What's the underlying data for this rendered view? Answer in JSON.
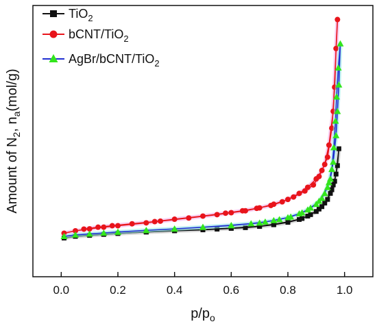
{
  "chart_data": {
    "type": "line",
    "xlabel": "p/p",
    "xlabel_sub": "o",
    "ylabel": "Amount of N",
    "ylabel_sub": "2",
    "ylabel_mid": ", n",
    "ylabel_sub2": "a",
    "ylabel_end": "(mol/g)",
    "xlim": [
      -0.1,
      1.1
    ],
    "ylim": [
      0,
      100
    ],
    "xticks": [
      "0.0",
      "0.2",
      "0.4",
      "0.6",
      "0.8",
      "1.0"
    ],
    "y_tick_labels_shown": false,
    "grid": false,
    "legend_position": "top-left",
    "series": [
      {
        "name": "TiO",
        "name_sub": "2",
        "color": "#111111",
        "marker": "square",
        "points": [
          [
            0.01,
            9.5
          ],
          [
            0.05,
            10.2
          ],
          [
            0.1,
            10.6
          ],
          [
            0.15,
            11.0
          ],
          [
            0.2,
            11.4
          ],
          [
            0.3,
            12.0
          ],
          [
            0.4,
            12.6
          ],
          [
            0.5,
            13.0
          ],
          [
            0.6,
            13.6
          ],
          [
            0.7,
            14.4
          ],
          [
            0.75,
            15.2
          ],
          [
            0.8,
            16.2
          ],
          [
            0.85,
            17.6
          ],
          [
            0.88,
            19.2
          ],
          [
            0.91,
            21.5
          ],
          [
            0.93,
            24.0
          ],
          [
            0.95,
            28.0
          ],
          [
            0.96,
            31.5
          ],
          [
            0.97,
            36.0
          ],
          [
            0.98,
            46.5
          ],
          [
            0.975,
            39.5
          ],
          [
            0.965,
            33.0
          ],
          [
            0.955,
            29.5
          ],
          [
            0.94,
            25.5
          ],
          [
            0.92,
            22.5
          ],
          [
            0.9,
            20.5
          ],
          [
            0.87,
            18.6
          ],
          [
            0.84,
            17.2
          ],
          [
            0.8,
            16.0
          ],
          [
            0.75,
            15.0
          ],
          [
            0.7,
            14.3
          ],
          [
            0.65,
            13.8
          ],
          [
            0.6,
            13.5
          ],
          [
            0.55,
            13.2
          ],
          [
            0.5,
            12.9
          ],
          [
            0.4,
            12.5
          ],
          [
            0.3,
            12.0
          ],
          [
            0.2,
            11.4
          ]
        ]
      },
      {
        "name": "bCNT/TiO",
        "name_sub": "2",
        "color": "#e8141b",
        "marker": "circle",
        "points": [
          [
            0.01,
            11.5
          ],
          [
            0.05,
            12.5
          ],
          [
            0.1,
            13.3
          ],
          [
            0.15,
            14.0
          ],
          [
            0.2,
            14.6
          ],
          [
            0.3,
            15.8
          ],
          [
            0.35,
            16.5
          ],
          [
            0.45,
            17.8
          ],
          [
            0.55,
            19.2
          ],
          [
            0.6,
            20.0
          ],
          [
            0.65,
            20.8
          ],
          [
            0.7,
            22.0
          ],
          [
            0.75,
            23.5
          ],
          [
            0.8,
            25.5
          ],
          [
            0.84,
            28.0
          ],
          [
            0.87,
            30.5
          ],
          [
            0.9,
            34.0
          ],
          [
            0.92,
            37.5
          ],
          [
            0.94,
            43.0
          ],
          [
            0.955,
            55.0
          ],
          [
            0.965,
            72.0
          ],
          [
            0.97,
            88.0
          ],
          [
            0.975,
            100.0
          ],
          [
            0.96,
            62.0
          ],
          [
            0.945,
            48.0
          ],
          [
            0.93,
            40.0
          ],
          [
            0.91,
            35.0
          ],
          [
            0.89,
            31.5
          ],
          [
            0.86,
            29.0
          ],
          [
            0.82,
            26.5
          ],
          [
            0.78,
            24.5
          ],
          [
            0.74,
            23.0
          ],
          [
            0.69,
            21.8
          ],
          [
            0.64,
            20.8
          ],
          [
            0.58,
            19.8
          ],
          [
            0.5,
            18.6
          ],
          [
            0.4,
            17.3
          ],
          [
            0.33,
            16.3
          ],
          [
            0.25,
            15.4
          ],
          [
            0.18,
            14.6
          ],
          [
            0.13,
            14.0
          ],
          [
            0.08,
            13.2
          ]
        ]
      },
      {
        "name": "AgBr/bCNT/TiO",
        "name_sub": "2",
        "color": "#1f2fd0",
        "marker": "triangle",
        "marker_color": "#33e51c",
        "points": [
          [
            0.01,
            10.2
          ],
          [
            0.05,
            10.8
          ],
          [
            0.1,
            11.2
          ],
          [
            0.15,
            11.6
          ],
          [
            0.2,
            12.0
          ],
          [
            0.3,
            12.7
          ],
          [
            0.4,
            13.3
          ],
          [
            0.5,
            14.0
          ],
          [
            0.6,
            14.7
          ],
          [
            0.7,
            15.8
          ],
          [
            0.75,
            16.8
          ],
          [
            0.8,
            18.0
          ],
          [
            0.84,
            19.6
          ],
          [
            0.87,
            21.2
          ],
          [
            0.9,
            23.5
          ],
          [
            0.92,
            26.0
          ],
          [
            0.94,
            30.5
          ],
          [
            0.95,
            34.0
          ],
          [
            0.96,
            41.0
          ],
          [
            0.97,
            52.0
          ],
          [
            0.975,
            62.0
          ],
          [
            0.98,
            73.0
          ],
          [
            0.985,
            90.0
          ],
          [
            0.978,
            80.0
          ],
          [
            0.972,
            68.0
          ],
          [
            0.968,
            58.0
          ],
          [
            0.962,
            47.0
          ],
          [
            0.955,
            38.0
          ],
          [
            0.945,
            32.5
          ],
          [
            0.93,
            28.0
          ],
          [
            0.91,
            24.8
          ],
          [
            0.88,
            22.0
          ],
          [
            0.85,
            20.0
          ],
          [
            0.81,
            18.3
          ],
          [
            0.77,
            17.2
          ],
          [
            0.72,
            16.2
          ],
          [
            0.67,
            15.5
          ],
          [
            0.6,
            14.8
          ],
          [
            0.5,
            14.0
          ],
          [
            0.4,
            13.3
          ],
          [
            0.3,
            12.7
          ],
          [
            0.2,
            12.0
          ]
        ]
      }
    ]
  }
}
